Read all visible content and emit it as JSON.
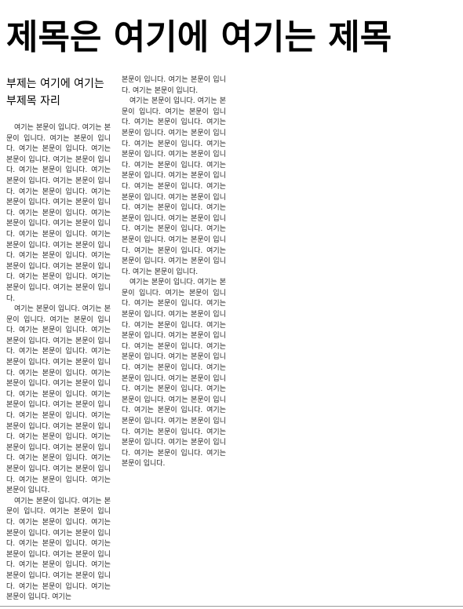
{
  "title": "제목은 여기에 여기는 제목",
  "subtitle": "부제는 여기에 여기는 부제목 자리",
  "column1": {
    "paragraphs": [
      "여기는 본문이 입니다. 여기는 본문이 입니다. 여기는 본문이 입니다. 여기는 본문이 입니다. 여기는 본문이 입니다. 여기는 본문이 입니다. 여기는 본문이 입니다. 여기는 본문이 입니다. 여기는 본문이 입니다. 여기는 본문이 입니다. 여기는 본문이 입니다. 여기는 본문이 입니다. 여기는 본문이 입니다. 여기는 본문이 입니다. 여기는 본문이 입니다. 여기는 본문이 입니다. 여기는 본문이 입니다. 여기는 본문이 입니다. 여기는 본문이 입니다. 여기는 본문이 입니다. 여기는 본문이 입니다. 여기는 본문이 입니다. 여기는 본문이 입니다. 여기는 본문이 입니다.",
      "여기는 본문이 입니다. 여기는 본문이 입니다. 여기는 본문이 입니다. 여기는 본문이 입니다. 여기는 본문이 입니다. 여기는 본문이 입니다. 여기는 본문이 입니다. 여기는 본문이 입니다. 여기는 본문이 입니다. 여기는 본문이 입니다. 여기는 본문이 입니다. 여기는 본문이 입니다. 여기는 본문이 입니다. 여기는 본문이 입니다. 여기는 본문이 입니다. 여기는 본문이 입니다. 여기는 본문이 입니다. 여기는 본문이 입니다. 여기는 본문이 입니다. 여기는 본문이 입니다. 여기는 본문이 입니다. 여기는 본문이 입니다. 여기는 본문이 입니다. 여기는 본문이 입니다. 여기는 본문이 입니다. 여기는 본문이 입니다.",
      "여기는 본문이 입니다. 여기는 본문이 입니다. 여기는 본문이 입니다. 여기는 본문이 입니다. 여기는 본문이 입니다. 여기는 본문이 입니다. 여기는 본문이 입니다. 여기는 본문이 입니다. 여기는 본문이 입니다. 여기는 본문이 입니다. 여기는 본문이 입니다. 여기는 본문이 입니다. 여기는 본문이 입니다. 여기는 본문이 입니다. 여기는"
    ]
  },
  "column2": {
    "paragraphs": [
      "본문이 입니다. 여기는 본문이 입니다. 여기는 본문이 입니다.",
      "여기는 본문이 입니다. 여기는 본문이 입니다. 여기는 본문이 입니다. 여기는 본문이 입니다. 여기는 본문이 입니다. 여기는 본문이 입니다. 여기는 본문이 입니다. 여기는 본문이 입니다. 여기는 본문이 입니다. 여기는 본문이 입니다. 여기는 본문이 입니다. 여기는 본문이 입니다. 여기는 본문이 입니다. 여기는 본문이 입니다. 여기는 본문이 입니다. 여기는 본문이 입니다. 여기는 본문이 입니다. 여기는 본문이 입니다. 여기는 본문이 입니다. 여기는 본문이 입니다. 여기는 본문이 입니다. 여기는 본문이 입니다. 여기는 본문이 입니다. 여기는 본문이 입니다. 여기는 본문이 입니다.",
      "여기는 본문이 입니다. 여기는 본문이 입니다. 여기는 본문이 입니다. 여기는 본문이 입니다. 여기는 본문이 입니다. 여기는 본문이 입니다. 여기는 본문이 입니다. 여기는 본문이 입니다. 여기는 본문이 입니다. 여기는 본문이 입니다. 여기는 본문이 입니다. 여기는 본문이 입니다. 여기는 본문이 입니다. 여기는 본문이 입니다. 여기는 본문이 입니다. 여기는 본문이 입니다. 여기는 본문이 입니다. 여기는 본문이 입니다. 여기는 본문이 입니다. 여기는 본문이 입니다. 여기는 본문이 입니다. 여기는 본문이 입니다. 여기는 본문이 입니다. 여기는 본문이 입니다. 여기는 본문이 입니다. 여기는 본문이 입니다."
    ]
  }
}
